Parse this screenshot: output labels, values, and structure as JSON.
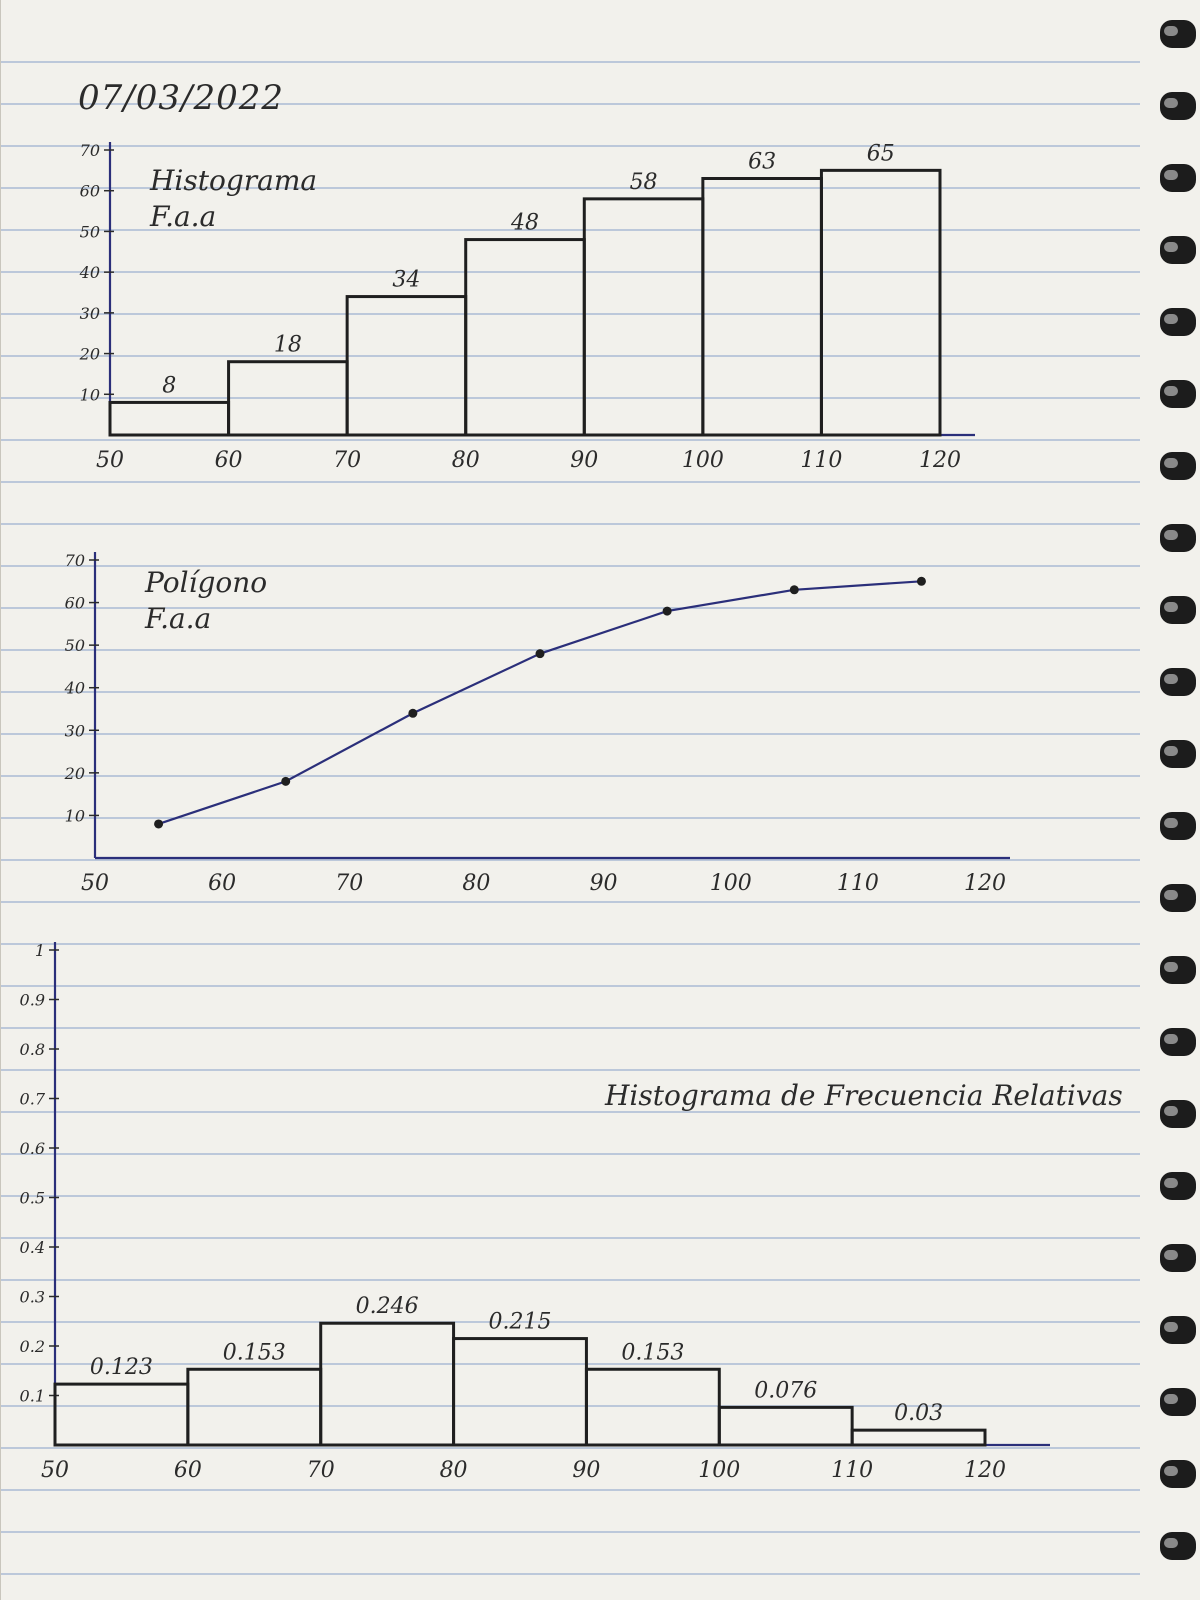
{
  "date": "07/03/2022",
  "colors": {
    "ink": "#1f1f1f",
    "pen_blue": "#2b2f7a",
    "rule": "#9db0cf",
    "paper": "#f2f1ec"
  },
  "chart_data": [
    {
      "type": "bar",
      "title": [
        "Histograma",
        "F.a.a"
      ],
      "categories": [
        "50-60",
        "60-70",
        "70-80",
        "80-90",
        "90-100",
        "100-110",
        "110-120"
      ],
      "bins": [
        50,
        60,
        70,
        80,
        90,
        100,
        110,
        120
      ],
      "values": [
        8,
        18,
        34,
        48,
        58,
        63,
        65
      ],
      "labels": [
        "8",
        "18",
        "34",
        "48",
        "58",
        "63",
        "65"
      ],
      "xticks": [
        "50",
        "60",
        "70",
        "80",
        "90",
        "100",
        "110",
        "120"
      ],
      "yticks": [
        "10",
        "20",
        "30",
        "40",
        "50",
        "60",
        "70"
      ],
      "xlim": [
        50,
        120
      ],
      "ylim": [
        0,
        70
      ]
    },
    {
      "type": "line",
      "title": [
        "Polígono",
        "F.a.a"
      ],
      "x": [
        55,
        65,
        75,
        85,
        95,
        105,
        115
      ],
      "y": [
        8,
        18,
        34,
        48,
        58,
        63,
        65
      ],
      "xticks": [
        "50",
        "60",
        "70",
        "80",
        "90",
        "100",
        "110",
        "120"
      ],
      "yticks": [
        "10",
        "20",
        "30",
        "40",
        "50",
        "60",
        "70"
      ],
      "xlim": [
        50,
        120
      ],
      "ylim": [
        0,
        70
      ]
    },
    {
      "type": "bar",
      "title": [
        "Histograma de Frecuencia Relativas"
      ],
      "categories": [
        "50-60",
        "60-70",
        "70-80",
        "80-90",
        "90-100",
        "100-110",
        "110-120"
      ],
      "bins": [
        50,
        60,
        70,
        80,
        90,
        100,
        110,
        120
      ],
      "values": [
        0.123,
        0.153,
        0.246,
        0.215,
        0.153,
        0.076,
        0.03
      ],
      "labels": [
        "0.123",
        "0.153",
        "0.246",
        "0.215",
        "0.153",
        "0.076",
        "0.03"
      ],
      "xticks": [
        "50",
        "60",
        "70",
        "80",
        "90",
        "100",
        "110",
        "120"
      ],
      "yticks": [
        "0.1",
        "0.2",
        "0.3",
        "0.4",
        "0.5",
        "0.6",
        "0.7",
        "0.8",
        "0.9",
        "1"
      ],
      "xlim": [
        50,
        120
      ],
      "ylim": [
        0,
        1
      ]
    }
  ]
}
